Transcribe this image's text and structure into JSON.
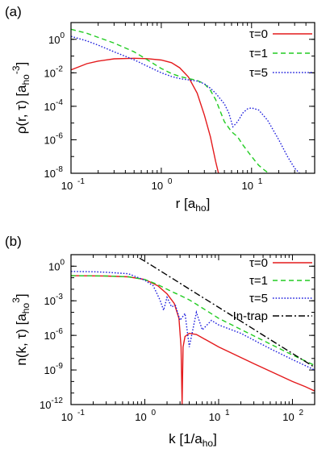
{
  "chart_data": [
    {
      "type": "line",
      "panel_label": "(a)",
      "xlabel": "r [a",
      "xlabel_sub": "ho",
      "xlabel_end": "]",
      "ylabel": "ρ(r, τ) [a",
      "ylabel_sub": "ho",
      "ylabel_sup": "-3",
      "ylabel_end": "]",
      "xscale": "log",
      "yscale": "log",
      "xlim": [
        0.1,
        50
      ],
      "ylim": [
        1e-08,
        10
      ],
      "xticks": [
        {
          "v": 0.1,
          "label": "10"
        },
        {
          "v": 1,
          "label": "10"
        },
        {
          "v": 10,
          "label": "10"
        }
      ],
      "xtick_exps": [
        "-1",
        "0",
        "1"
      ],
      "yticks": [
        {
          "v": 1,
          "label": "10"
        },
        {
          "v": 0.01,
          "label": "10"
        },
        {
          "v": 0.0001,
          "label": "10"
        },
        {
          "v": 1e-06,
          "label": "10"
        },
        {
          "v": 1e-08,
          "label": "10"
        }
      ],
      "ytick_exps": [
        "0",
        "-2",
        "-4",
        "-6",
        "-8"
      ],
      "legend_position": "top-right",
      "series": [
        {
          "name": "τ=0",
          "color": "#e41a1c",
          "dash": "solid",
          "x": [
            0.1,
            0.15,
            0.2,
            0.3,
            0.5,
            0.7,
            1.0,
            1.3,
            1.6,
            2.0,
            2.5,
            3.0,
            3.5,
            4.0,
            4.3
          ],
          "y": [
            0.015,
            0.035,
            0.05,
            0.068,
            0.074,
            0.07,
            0.058,
            0.04,
            0.02,
            0.0055,
            0.0006,
            3e-05,
            1.5e-06,
            5e-08,
            1e-08
          ]
        },
        {
          "name": "τ=1",
          "color": "#22cc22",
          "dash": "6,4",
          "x": [
            0.1,
            0.15,
            0.2,
            0.3,
            0.5,
            0.7,
            1.0,
            1.3,
            1.6,
            2.0,
            2.5,
            3.0,
            3.5,
            4.0,
            5.0,
            6.0,
            7.0,
            8.0,
            10.0,
            12.0,
            14.0,
            15.5
          ],
          "y": [
            4.0,
            2.3,
            1.3,
            0.6,
            0.18,
            0.06,
            0.018,
            0.009,
            0.006,
            0.0045,
            0.0035,
            0.0022,
            0.0009,
            0.00025,
            1.2e-05,
            3e-06,
            1.5e-06,
            5e-07,
            1e-07,
            3e-08,
            1.5e-08,
            1e-08
          ]
        },
        {
          "name": "τ=5",
          "color": "#1f1fdd",
          "dash": "1.6,2",
          "x": [
            0.1,
            0.15,
            0.2,
            0.3,
            0.5,
            0.7,
            1.0,
            1.3,
            1.6,
            2.0,
            2.5,
            3.0,
            3.5,
            4.0,
            5.0,
            5.6,
            6.2,
            7.0,
            8.0,
            9.0,
            10.0,
            12.0,
            15.0,
            20.0,
            25.0,
            30.0,
            34.0
          ],
          "y": [
            1.5,
            0.8,
            0.45,
            0.18,
            0.06,
            0.025,
            0.01,
            0.006,
            0.0045,
            0.0038,
            0.0032,
            0.0022,
            0.0012,
            0.0006,
            0.00014,
            4e-05,
            6e-06,
            1.2e-05,
            4e-05,
            7e-05,
            8e-05,
            6e-05,
            1.5e-05,
            1e-06,
            1e-07,
            2e-08,
            1e-08
          ]
        }
      ]
    },
    {
      "type": "line",
      "panel_label": "(b)",
      "xlabel": "k [1/a",
      "xlabel_sub": "ho",
      "xlabel_end": "]",
      "ylabel": "n(k, τ) [a",
      "ylabel_sub": "ho",
      "ylabel_sup": "3",
      "ylabel_end": "]",
      "xscale": "log",
      "yscale": "log",
      "xlim": [
        0.1,
        200
      ],
      "ylim": [
        1e-12,
        10
      ],
      "xticks": [
        {
          "v": 0.1,
          "label": "10"
        },
        {
          "v": 1,
          "label": "10"
        },
        {
          "v": 10,
          "label": "10"
        },
        {
          "v": 100,
          "label": "10"
        }
      ],
      "xtick_exps": [
        "-1",
        "0",
        "1",
        "2"
      ],
      "yticks": [
        {
          "v": 1,
          "label": "10"
        },
        {
          "v": 0.001,
          "label": "10"
        },
        {
          "v": 1e-06,
          "label": "10"
        },
        {
          "v": 1e-09,
          "label": "10"
        },
        {
          "v": 1e-12,
          "label": "10"
        }
      ],
      "ytick_exps": [
        "0",
        "-3",
        "-6",
        "-9",
        "-12"
      ],
      "legend_position": "right",
      "series": [
        {
          "name": "τ=0",
          "color": "#e41a1c",
          "dash": "solid",
          "x": [
            0.1,
            0.3,
            0.6,
            1.0,
            1.5,
            2.0,
            2.5,
            2.9,
            3.1,
            3.2,
            3.3,
            3.5,
            4.0,
            5.0,
            10.0,
            30.0,
            100.0,
            150.0,
            200.0
          ],
          "y": [
            0.15,
            0.14,
            0.12,
            0.07,
            0.02,
            0.004,
            0.0006,
            3e-05,
            1e-07,
            1e-12,
            1e-07,
            8e-07,
            1.5e-06,
            1.2e-06,
            1e-07,
            3.5e-09,
            1e-10,
            3.5e-11,
            1.5e-11
          ]
        },
        {
          "name": "τ=1",
          "color": "#22cc22",
          "dash": "6,4",
          "x": [
            0.1,
            0.3,
            0.6,
            1.0,
            1.5,
            2.0,
            2.5,
            3.0,
            4.0,
            5.0,
            10.0,
            30.0,
            100.0,
            200.0
          ],
          "y": [
            0.15,
            0.14,
            0.12,
            0.07,
            0.025,
            0.01,
            0.005,
            0.003,
            0.0012,
            0.0005,
            3e-05,
            9e-07,
            2e-08,
            2.5e-09
          ]
        },
        {
          "name": "τ=5",
          "color": "#1f1fdd",
          "dash": "1.6,2",
          "x": [
            0.1,
            0.2,
            0.3,
            0.6,
            1.0,
            1.3,
            1.6,
            1.8,
            2.0,
            2.3,
            2.6,
            3.0,
            3.5,
            4.0,
            5.0,
            6.0,
            8.0,
            10.0,
            20.0,
            50.0,
            100.0,
            200.0
          ],
          "y": [
            0.35,
            0.33,
            0.3,
            0.22,
            0.06,
            0.02,
            0.0012,
            0.00015,
            0.002,
            0.0003,
            0.0004,
            2e-05,
            8e-05,
            1e-07,
            0.0001,
            3e-06,
            2e-05,
            8e-06,
            1.5e-06,
            7e-08,
            8e-09,
            1e-09
          ]
        },
        {
          "name": "In-trap",
          "color": "#000000",
          "dash": "8,3,2,3",
          "x": [
            0.85,
            1.0,
            2.0,
            5.0,
            10.0,
            20.0,
            50.0,
            100.0,
            200.0
          ],
          "y": [
            5.0,
            2.7,
            0.17,
            0.0043,
            0.00027,
            1.7e-05,
            4.3e-07,
            2.7e-08,
            1.7e-09
          ]
        }
      ]
    }
  ]
}
